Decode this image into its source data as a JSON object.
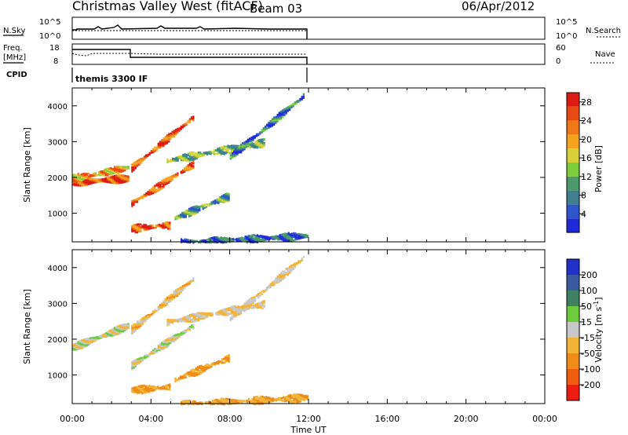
{
  "header": {
    "title": "Christmas Valley West (fitACF)",
    "beam": "Beam 03",
    "date": "06/Apr/2012"
  },
  "labels": {
    "nsky": "N.Sky",
    "nsearch": "N.Search",
    "freq_line1": "Freq.",
    "freq_line2": "[MHz]",
    "nave": "Nave",
    "cpid": "CPID",
    "cpid_value": "themis 3300 IF",
    "noise_tick_hi": "10^5",
    "noise_tick_lo": "10^0",
    "noise_tick_hi_r": "10^5",
    "noise_tick_lo_r": "10^0",
    "freq_tick_hi": "18",
    "freq_tick_lo": "8",
    "nave_tick_hi": "60",
    "nave_tick_lo": "0"
  },
  "colors": {
    "power": [
      "#1f2ad6",
      "#2f55c9",
      "#3f7f8f",
      "#4a9a6a",
      "#7ccc3c",
      "#d8d03a",
      "#f5a21e",
      "#f07818",
      "#e84a14",
      "#dc1c12"
    ],
    "velocity": [
      "#2030c8",
      "#3a5aa0",
      "#3f8060",
      "#6ccc3c",
      "#c8c8c8",
      "#f2b436",
      "#f08c16",
      "#f05c10",
      "#ec1c10"
    ]
  },
  "chart_data": [
    {
      "type": "heatmap",
      "name": "power",
      "xlabel": "",
      "ylabel": "Slant Range [km]",
      "xlim": [
        "00:00",
        "24:00"
      ],
      "ylim": [
        200,
        4500
      ],
      "yticks": [
        "1000",
        "2000",
        "3000",
        "4000"
      ],
      "colorbar_label": "Power [dB]",
      "colorbar_ticks": [
        "4",
        "8",
        "12",
        "16",
        "20",
        "24",
        "28"
      ],
      "colorbar_range": [
        0,
        30
      ],
      "features": [
        {
          "t0": 0.0,
          "t1": 2.9,
          "r0": 1900,
          "r1": 2000,
          "v": 26
        },
        {
          "t0": 0.0,
          "t1": 2.9,
          "r0": 2000,
          "r1": 2300,
          "v": 20
        },
        {
          "t0": 3.0,
          "t1": 6.2,
          "r0": 2300,
          "r1": 3700,
          "v": 25
        },
        {
          "t0": 3.0,
          "t1": 6.2,
          "r0": 1300,
          "r1": 2400,
          "v": 24
        },
        {
          "t0": 4.8,
          "t1": 9.8,
          "r0": 2500,
          "r1": 3000,
          "v": 12
        },
        {
          "t0": 5.2,
          "t1": 8.0,
          "r0": 900,
          "r1": 1500,
          "v": 10
        },
        {
          "t0": 8.0,
          "t1": 11.8,
          "r0": 2600,
          "r1": 4300,
          "v": 7
        },
        {
          "t0": 3.0,
          "t1": 5.0,
          "r0": 600,
          "r1": 700,
          "v": 24
        },
        {
          "t0": 5.5,
          "t1": 12.0,
          "r0": 200,
          "r1": 400,
          "v": 6
        }
      ]
    },
    {
      "type": "heatmap",
      "name": "velocity",
      "xlabel": "Time UT",
      "ylabel": "Slant Range [km]",
      "xlim": [
        "00:00",
        "24:00"
      ],
      "xticks": [
        "00:00",
        "04:00",
        "08:00",
        "12:00",
        "16:00",
        "20:00",
        "00:00"
      ],
      "ylim": [
        200,
        4500
      ],
      "yticks": [
        "1000",
        "2000",
        "3000",
        "4000"
      ],
      "colorbar_label": "Velocity [m s^-1]",
      "colorbar_ticks": [
        "200",
        "100",
        "50",
        "15",
        "-15",
        "-50",
        "-100",
        "-200"
      ],
      "features": [
        {
          "t0": 0.0,
          "t1": 2.9,
          "r0": 1800,
          "r1": 2400,
          "v": 0
        },
        {
          "t0": 3.0,
          "t1": 6.2,
          "r0": 2300,
          "r1": 3700,
          "v": -30
        },
        {
          "t0": 3.0,
          "t1": 6.2,
          "r0": 1300,
          "r1": 2400,
          "v": 0
        },
        {
          "t0": 4.8,
          "t1": 9.8,
          "r0": 2500,
          "r1": 3000,
          "v": -20
        },
        {
          "t0": 5.2,
          "t1": 8.0,
          "r0": 900,
          "r1": 1500,
          "v": -60
        },
        {
          "t0": 8.0,
          "t1": 11.8,
          "r0": 2600,
          "r1": 4300,
          "v": -10
        },
        {
          "t0": 3.0,
          "t1": 5.0,
          "r0": 600,
          "r1": 700,
          "v": -60
        },
        {
          "t0": 5.5,
          "t1": 12.0,
          "r0": 200,
          "r1": 400,
          "v": -40
        }
      ]
    }
  ]
}
